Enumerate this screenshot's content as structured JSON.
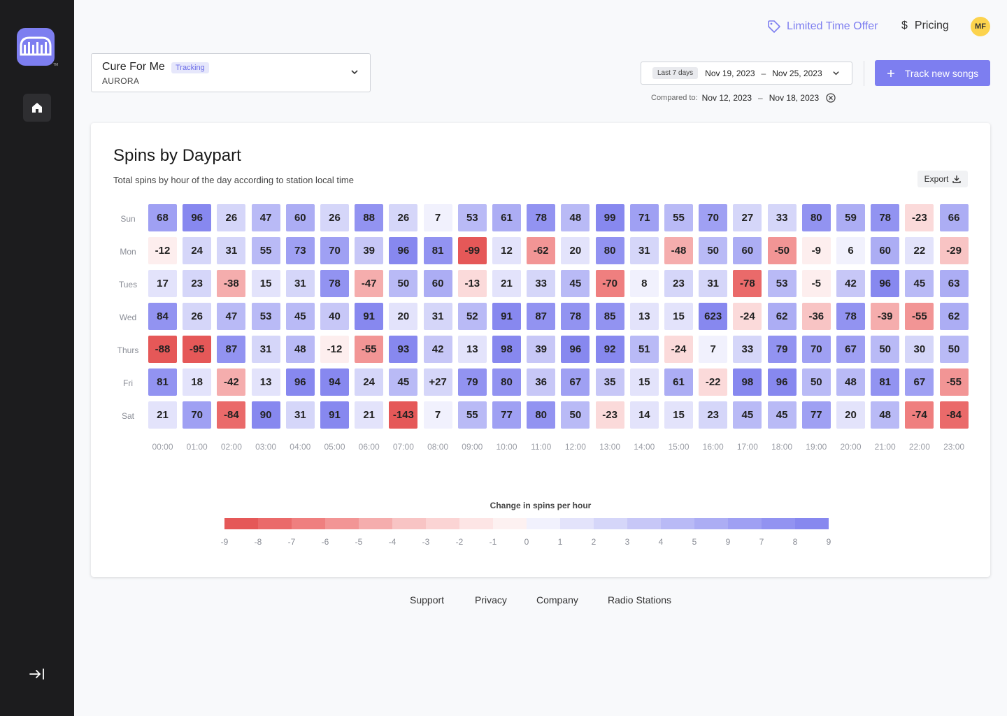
{
  "topbar": {
    "offer_label": "Limited Time Offer",
    "pricing_label": "Pricing",
    "avatar_initials": "MF"
  },
  "song": {
    "title": "Cure For Me",
    "badge": "Tracking",
    "artist": "AURORA"
  },
  "dates": {
    "range_chip": "Last 7 days",
    "start": "Nov 19, 2023",
    "end": "Nov 25, 2023",
    "compare_label": "Compared to:",
    "compare_start": "Nov 12, 2023",
    "compare_end": "Nov 18, 2023",
    "dash": "–"
  },
  "actions": {
    "track_label": "Track new songs",
    "export_label": "Export"
  },
  "chart": {
    "title": "Spins by Daypart",
    "subtitle": "Total spins by hour of the day according to station local time",
    "legend_title": "Change in spins per hour",
    "legend_ticks": [
      "-9",
      "-8",
      "-7",
      "-6",
      "-5",
      "-4",
      "-3",
      "-2",
      "-1",
      "0",
      "1",
      "2",
      "3",
      "4",
      "5",
      "9",
      "7",
      "8",
      "9"
    ]
  },
  "chart_data": {
    "type": "heatmap",
    "title": "Spins by Daypart",
    "legend_title": "Change in spins per hour",
    "rows": [
      "Sun",
      "Mon",
      "Tues",
      "Wed",
      "Thurs",
      "Fri",
      "Sat"
    ],
    "columns": [
      "00:00",
      "01:00",
      "02:00",
      "03:00",
      "04:00",
      "05:00",
      "06:00",
      "07:00",
      "08:00",
      "09:00",
      "10:00",
      "11:00",
      "12:00",
      "13:00",
      "14:00",
      "15:00",
      "16:00",
      "17:00",
      "18:00",
      "19:00",
      "20:00",
      "21:00",
      "22:00",
      "23:00"
    ],
    "values": [
      [
        "68",
        "96",
        "26",
        "47",
        "60",
        "26",
        "88",
        "26",
        "7",
        "53",
        "61",
        "78",
        "48",
        "99",
        "71",
        "55",
        "70",
        "27",
        "33",
        "80",
        "59",
        "78",
        "-23",
        "66"
      ],
      [
        "-12",
        "24",
        "31",
        "55",
        "73",
        "70",
        "39",
        "96",
        "81",
        "-99",
        "12",
        "-62",
        "20",
        "80",
        "31",
        "-48",
        "50",
        "60",
        "-50",
        "-9",
        "6",
        "60",
        "22",
        "-29"
      ],
      [
        "17",
        "23",
        "-38",
        "15",
        "31",
        "78",
        "-47",
        "50",
        "60",
        "-13",
        "21",
        "33",
        "45",
        "-70",
        "8",
        "23",
        "31",
        "-78",
        "53",
        "-5",
        "42",
        "96",
        "45",
        "63"
      ],
      [
        "84",
        "26",
        "47",
        "53",
        "45",
        "40",
        "91",
        "20",
        "31",
        "52",
        "91",
        "87",
        "78",
        "85",
        "13",
        "15",
        "623",
        "-24",
        "62",
        "-36",
        "78",
        "-39",
        "-55",
        "62"
      ],
      [
        "-88",
        "-95",
        "87",
        "31",
        "48",
        "-12",
        "-55",
        "93",
        "42",
        "13",
        "98",
        "39",
        "96",
        "92",
        "51",
        "-24",
        "7",
        "33",
        "79",
        "70",
        "67",
        "50",
        "30",
        "50"
      ],
      [
        "81",
        "18",
        "-42",
        "13",
        "96",
        "94",
        "24",
        "45",
        "+27",
        "79",
        "80",
        "36",
        "67",
        "35",
        "15",
        "61",
        "-22",
        "98",
        "96",
        "50",
        "48",
        "81",
        "67",
        "-55"
      ],
      [
        "21",
        "70",
        "-84",
        "90",
        "31",
        "91",
        "21",
        "-143",
        "7",
        "55",
        "77",
        "80",
        "50",
        "-23",
        "14",
        "15",
        "23",
        "45",
        "45",
        "77",
        "20",
        "48",
        "-74",
        "-84"
      ]
    ]
  },
  "colors": {
    "accent": "#7d7ef0",
    "positive_scale": [
      "#f1f1fd",
      "#e3e3fb",
      "#d5d6f9",
      "#c7c7f7",
      "#b9baf6",
      "#acadf4",
      "#9fa0f3",
      "#9293f1",
      "#8788ef"
    ],
    "negative_scale": [
      "#fdeeee",
      "#fbdada",
      "#f8c4c4",
      "#f5adad",
      "#f29595",
      "#ef7f7f",
      "#ea6a6a",
      "#e55858"
    ],
    "legend_colors": [
      "#e55858",
      "#ea6a6a",
      "#ef7f7f",
      "#f29595",
      "#f5adad",
      "#f8c4c4",
      "#fbd4d4",
      "#fde5e5",
      "#fdf1f1",
      "#f1f1fd",
      "#e3e3fb",
      "#d5d6f9",
      "#c7c7f7",
      "#b9baf6",
      "#acadf4",
      "#9fa0f3",
      "#9293f1",
      "#8788ef"
    ]
  },
  "footer": {
    "links": [
      "Support",
      "Privacy",
      "Company",
      "Radio Stations"
    ]
  },
  "icons": {
    "logo": "app-logo-icon",
    "home": "home-icon",
    "collapse": "collapse-sidebar-icon",
    "tag": "tag-icon",
    "dollar": "dollar-icon",
    "chevron": "chevron-down-icon",
    "clear": "clear-circle-icon",
    "plus": "plus-icon",
    "download": "download-icon"
  }
}
